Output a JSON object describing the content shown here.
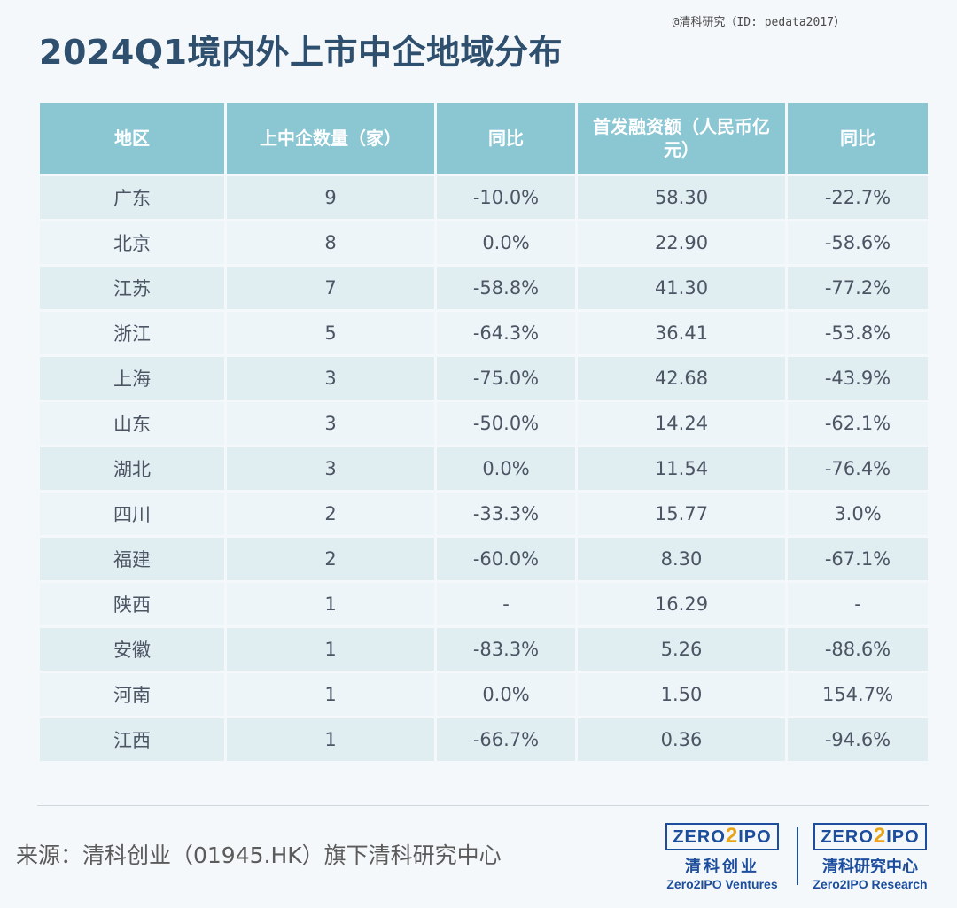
{
  "watermark": "@清科研究（ID: pedata2017）",
  "title": "2024Q1境内外上市中企地域分布",
  "table": {
    "headers": [
      "地区",
      "上中企数量（家）",
      "同比",
      "首发融资额（人民币亿元）",
      "同比"
    ],
    "rows": [
      [
        "广东",
        "9",
        "-10.0%",
        "58.30",
        "-22.7%"
      ],
      [
        "北京",
        "8",
        "0.0%",
        "22.90",
        "-58.6%"
      ],
      [
        "江苏",
        "7",
        "-58.8%",
        "41.30",
        "-77.2%"
      ],
      [
        "浙江",
        "5",
        "-64.3%",
        "36.41",
        "-53.8%"
      ],
      [
        "上海",
        "3",
        "-75.0%",
        "42.68",
        "-43.9%"
      ],
      [
        "山东",
        "3",
        "-50.0%",
        "14.24",
        "-62.1%"
      ],
      [
        "湖北",
        "3",
        "0.0%",
        "11.54",
        "-76.4%"
      ],
      [
        "四川",
        "2",
        "-33.3%",
        "15.77",
        "3.0%"
      ],
      [
        "福建",
        "2",
        "-60.0%",
        "8.30",
        "-67.1%"
      ],
      [
        "陕西",
        "1",
        "-",
        "16.29",
        "-"
      ],
      [
        "安徽",
        "1",
        "-83.3%",
        "5.26",
        "-88.6%"
      ],
      [
        "河南",
        "1",
        "0.0%",
        "1.50",
        "154.7%"
      ],
      [
        "江西",
        "1",
        "-66.7%",
        "0.36",
        "-94.6%"
      ]
    ]
  },
  "source": "来源：清科创业（01945.HK）旗下清科研究中心",
  "logos": [
    {
      "mark_left": "ZERO",
      "mark_two": "2",
      "mark_right": "IPO",
      "cn": "清科创业",
      "en": "Zero2IPO Ventures"
    },
    {
      "mark_left": "ZERO",
      "mark_two": "2",
      "mark_right": "IPO",
      "cn": "清科研究中心",
      "en": "Zero2IPO Research"
    }
  ],
  "colors": {
    "header": "#8bc6d3",
    "title": "#2f4f6e",
    "brand_blue": "#1c4e9d",
    "brand_orange": "#e8a51a"
  }
}
